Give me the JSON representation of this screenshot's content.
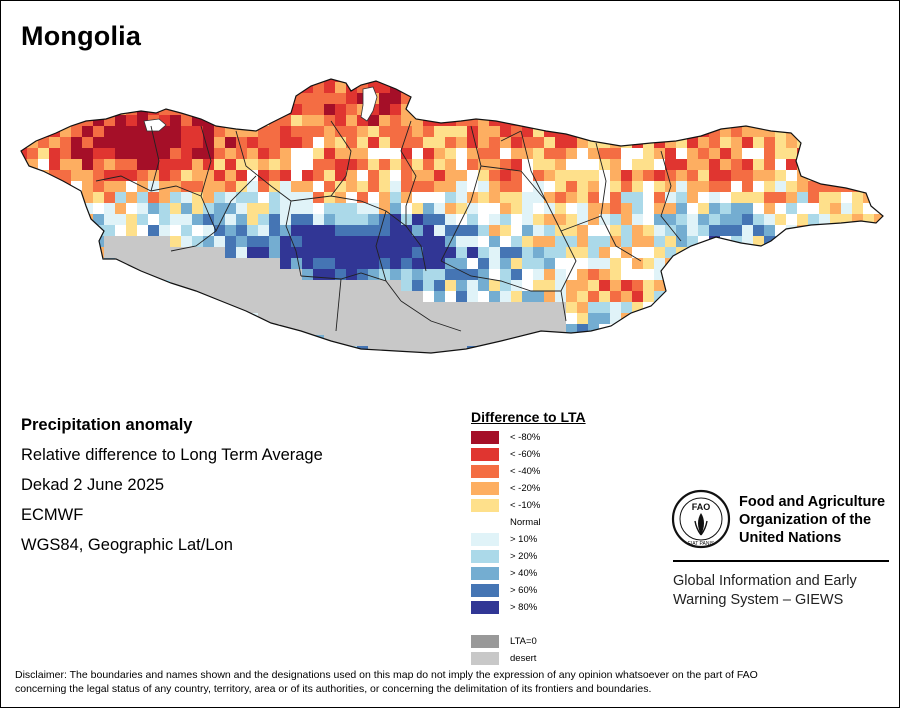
{
  "map": {
    "title": "Mongolia",
    "region": "Mongolia",
    "colors": {
      "lt80": "#a50f28",
      "lt60": "#e03530",
      "lt40": "#f46d43",
      "lt20": "#fdae61",
      "lt10": "#fee08b",
      "normal": "#ffffff",
      "gt10": "#e0f3f8",
      "gt20": "#abd9e9",
      "gt40": "#74add1",
      "gt60": "#4575b4",
      "gt80": "#313695",
      "lta0": "#999999",
      "desert": "#c8c8c8",
      "boundary": "#222222"
    }
  },
  "info": {
    "heading": "Precipitation anomaly",
    "description": "Relative difference to Long Term Average",
    "period": "Dekad 2 June 2025",
    "source": "ECMWF",
    "projection": "WGS84, Geographic Lat/Lon"
  },
  "legend": {
    "title": "Difference to LTA",
    "items": [
      {
        "label": "< -80%",
        "color": "#a50f28"
      },
      {
        "label": "< -60%",
        "color": "#e03530"
      },
      {
        "label": "< -40%",
        "color": "#f46d43"
      },
      {
        "label": "< -20%",
        "color": "#fdae61"
      },
      {
        "label": "< -10%",
        "color": "#fee08b"
      },
      {
        "label": "Normal",
        "color": ""
      },
      {
        "label": "> 10%",
        "color": "#e0f3f8"
      },
      {
        "label": "> 20%",
        "color": "#abd9e9"
      },
      {
        "label": "> 40%",
        "color": "#74add1"
      },
      {
        "label": "> 60%",
        "color": "#4575b4"
      },
      {
        "label": "> 80%",
        "color": "#313695"
      },
      {
        "label": "",
        "color": ""
      },
      {
        "label": "LTA=0",
        "color": "#999999"
      },
      {
        "label": "desert",
        "color": "#c8c8c8"
      }
    ]
  },
  "logo": {
    "org_name_line1": "Food and Agriculture",
    "org_name_line2": "Organization of the",
    "org_name_line3": "United Nations",
    "logo_text_top": "FAO",
    "logo_text_bottom": "FIAT PANIS",
    "system_line1": "Global Information and Early",
    "system_line2": "Warning System – GIEWS"
  },
  "disclaimer": {
    "line1": "Disclaimer: The boundaries and names shown and the designations used on this map do not imply the expression of any opinion whatsoever on the part of FAO",
    "line2": "concerning the legal status of any country, territory, area or of its authorities, or concerning the delimitation of its frontiers and boundaries."
  }
}
